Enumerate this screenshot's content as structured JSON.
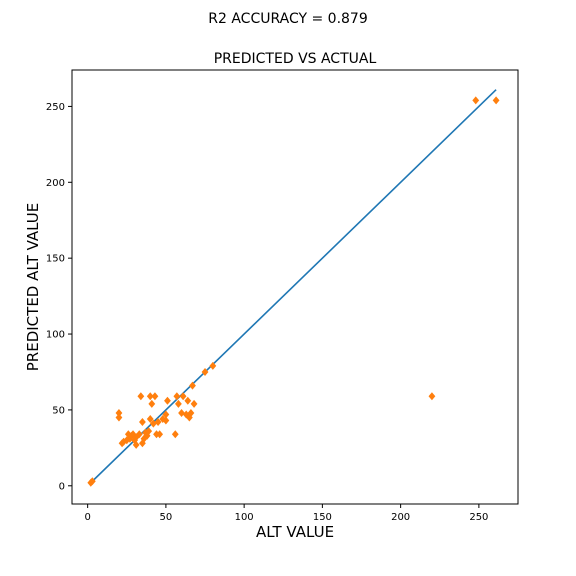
{
  "figure": {
    "suptitle": "R2 ACCURACY = 0.879"
  },
  "chart_data": {
    "type": "scatter",
    "title": "PREDICTED VS ACTUAL",
    "xlabel": "ALT VALUE",
    "ylabel": "PREDICTED ALT VALUE",
    "xlim": [
      -10,
      275
    ],
    "ylim": [
      -12,
      274
    ],
    "xticks": [
      0,
      50,
      100,
      150,
      200,
      250
    ],
    "yticks": [
      0,
      50,
      100,
      150,
      200,
      250
    ],
    "grid": false,
    "colors": {
      "points": "#ff7f0e",
      "line": "#1f77b4"
    },
    "marker": "diamond",
    "fit_line": {
      "x": [
        2,
        261
      ],
      "y": [
        2,
        261
      ]
    },
    "points": [
      {
        "x": 2,
        "y": 2
      },
      {
        "x": 3,
        "y": 3
      },
      {
        "x": 20,
        "y": 45
      },
      {
        "x": 20,
        "y": 48
      },
      {
        "x": 22,
        "y": 28
      },
      {
        "x": 23,
        "y": 29
      },
      {
        "x": 25,
        "y": 30
      },
      {
        "x": 26,
        "y": 34
      },
      {
        "x": 27,
        "y": 31
      },
      {
        "x": 28,
        "y": 33
      },
      {
        "x": 29,
        "y": 34
      },
      {
        "x": 30,
        "y": 30
      },
      {
        "x": 31,
        "y": 32
      },
      {
        "x": 31,
        "y": 27
      },
      {
        "x": 33,
        "y": 34
      },
      {
        "x": 34,
        "y": 59
      },
      {
        "x": 35,
        "y": 28
      },
      {
        "x": 35,
        "y": 42
      },
      {
        "x": 36,
        "y": 31
      },
      {
        "x": 37,
        "y": 35
      },
      {
        "x": 38,
        "y": 33
      },
      {
        "x": 39,
        "y": 36
      },
      {
        "x": 40,
        "y": 44
      },
      {
        "x": 40,
        "y": 59
      },
      {
        "x": 41,
        "y": 54
      },
      {
        "x": 42,
        "y": 41
      },
      {
        "x": 43,
        "y": 59
      },
      {
        "x": 44,
        "y": 34
      },
      {
        "x": 45,
        "y": 42
      },
      {
        "x": 46,
        "y": 34
      },
      {
        "x": 48,
        "y": 44
      },
      {
        "x": 50,
        "y": 43
      },
      {
        "x": 50,
        "y": 47
      },
      {
        "x": 51,
        "y": 56
      },
      {
        "x": 56,
        "y": 34
      },
      {
        "x": 57,
        "y": 59
      },
      {
        "x": 58,
        "y": 54
      },
      {
        "x": 60,
        "y": 48
      },
      {
        "x": 61,
        "y": 59
      },
      {
        "x": 63,
        "y": 47
      },
      {
        "x": 64,
        "y": 56
      },
      {
        "x": 65,
        "y": 45
      },
      {
        "x": 66,
        "y": 48
      },
      {
        "x": 67,
        "y": 66
      },
      {
        "x": 68,
        "y": 54
      },
      {
        "x": 75,
        "y": 75
      },
      {
        "x": 80,
        "y": 79
      },
      {
        "x": 220,
        "y": 59
      },
      {
        "x": 248,
        "y": 254
      },
      {
        "x": 261,
        "y": 254
      }
    ]
  }
}
